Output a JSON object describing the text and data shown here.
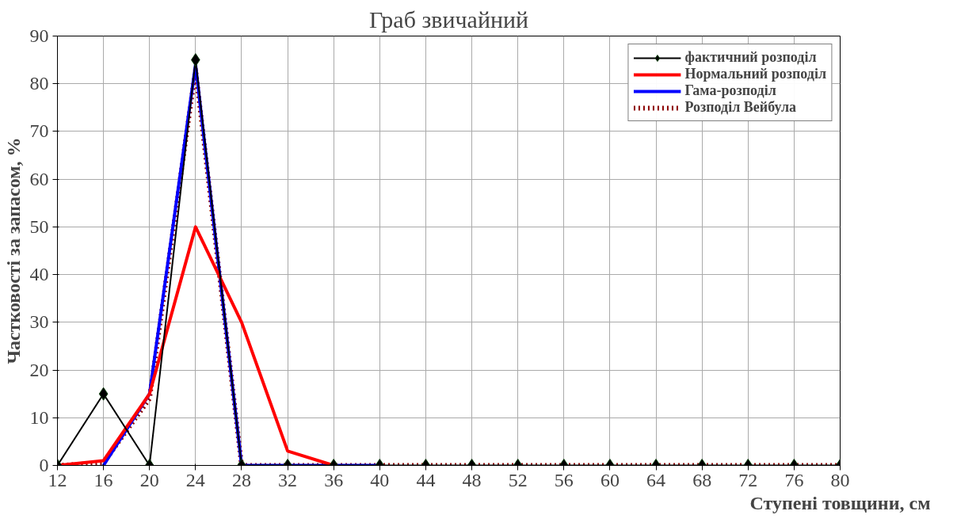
{
  "chart_data": {
    "type": "line",
    "title": "Граб звичайний",
    "xlabel": "Ступені товщини, см",
    "ylabel": "Частковості за запасом, %",
    "x": [
      12,
      16,
      20,
      24,
      28,
      32,
      36,
      40,
      44,
      48,
      52,
      56,
      60,
      64,
      68,
      72,
      76,
      80
    ],
    "xlim": [
      12,
      80
    ],
    "xticks": [
      12,
      16,
      20,
      24,
      28,
      32,
      36,
      40,
      44,
      48,
      52,
      56,
      60,
      64,
      68,
      72,
      76,
      80
    ],
    "ylim": [
      0,
      90
    ],
    "yticks": [
      0,
      10,
      20,
      30,
      40,
      50,
      60,
      70,
      80,
      90
    ],
    "grid": true,
    "legend": "top right",
    "series": [
      {
        "name": "фактичний розподіл",
        "color": "#000000",
        "marker": "diamond",
        "line_style": "solid",
        "values": [
          0,
          15,
          0,
          85,
          0,
          0,
          0,
          0,
          0,
          0,
          0,
          0,
          0,
          0,
          0,
          0,
          0,
          0
        ]
      },
      {
        "name": "Нормальний розподіл",
        "color": "#ff0000",
        "marker": "none",
        "line_style": "solid",
        "values": [
          0,
          1,
          15,
          50,
          30,
          3,
          0,
          null,
          null,
          null,
          null,
          null,
          null,
          null,
          null,
          null,
          null,
          null
        ]
      },
      {
        "name": "Гама-розподіл",
        "color": "#0000ff",
        "marker": "none",
        "line_style": "solid",
        "values": [
          null,
          0,
          15,
          84,
          0,
          0,
          0,
          0,
          null,
          null,
          null,
          null,
          null,
          null,
          null,
          null,
          null,
          null
        ]
      },
      {
        "name": "Розподіл Вейбула",
        "color": "#8b0000",
        "marker": "none",
        "line_style": "dotted",
        "values": [
          0,
          0.5,
          14,
          83,
          0,
          0,
          0,
          0,
          0,
          0,
          0,
          0,
          0,
          0,
          0,
          0,
          0,
          0
        ]
      }
    ]
  }
}
